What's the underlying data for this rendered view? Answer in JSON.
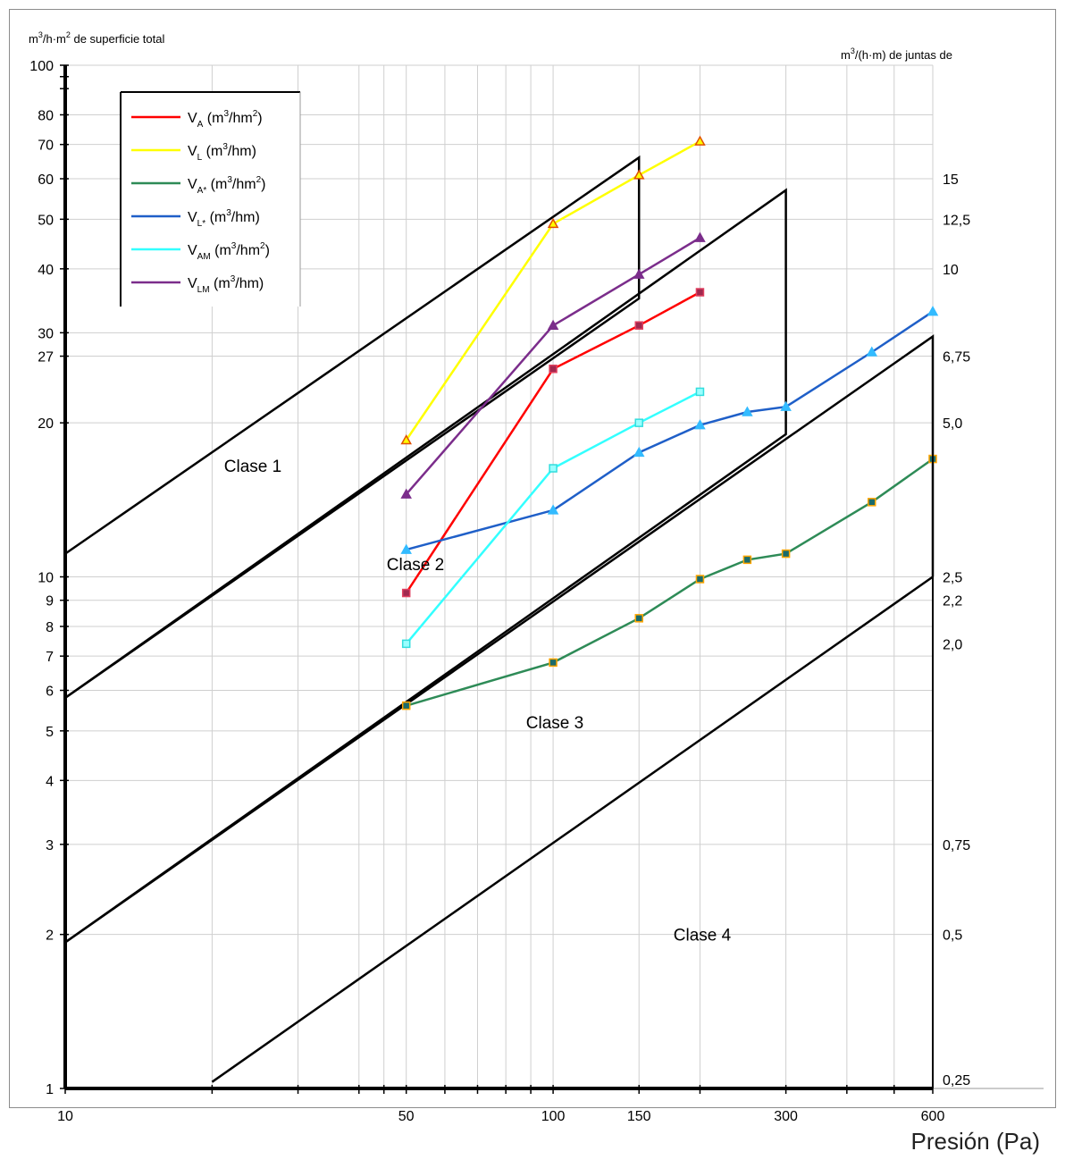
{
  "chart_data": {
    "type": "line",
    "x_scale": "log",
    "y_scale": "log",
    "xlim": [
      10,
      600
    ],
    "ylim": [
      1,
      100
    ],
    "grid": true,
    "legend_position": "top-left",
    "ylabel_left": {
      "base": "m",
      "sup1": "3",
      "mid": "/h·m",
      "sup2": "2",
      "tail": " de superficie total"
    },
    "ylabel_right": {
      "base": "m",
      "sup1": "3",
      "tail": "/(h·m) de juntas de"
    },
    "xlabel": "Presión (Pa)",
    "x_ticks": [
      "10",
      "50",
      "100",
      "150",
      "300",
      "600"
    ],
    "y_ticks_left": [
      "100",
      "80",
      "70",
      "60",
      "50",
      "40",
      "30",
      "27",
      "20",
      "10",
      "9",
      "8",
      "7",
      "6",
      "5",
      "4",
      "3",
      "2",
      "1"
    ],
    "y_ticks_right": [
      "15",
      "12,5",
      "10",
      "6,75",
      "5,0",
      "2,5",
      "2,2",
      "2,0",
      "0,75",
      "0,5",
      "0,25"
    ],
    "class_labels": [
      "Clase 1",
      "Clase 2",
      "Clase 3",
      "Clase 4"
    ],
    "class_boundaries": [
      {
        "points": [
          [
            10,
            11.1
          ],
          [
            150,
            66
          ],
          [
            150,
            35
          ],
          [
            10,
            5.8
          ]
        ]
      },
      {
        "points": [
          [
            10,
            5.8
          ],
          [
            300,
            57
          ],
          [
            300,
            19
          ],
          [
            10,
            1.93
          ]
        ]
      },
      {
        "points": [
          [
            10,
            1.93
          ],
          [
            600,
            29.5
          ],
          [
            600,
            10
          ]
        ]
      },
      {
        "points": [
          [
            20,
            1.03
          ],
          [
            600,
            10
          ]
        ]
      }
    ],
    "series": [
      {
        "name": "V_A (m³/hm²)",
        "label_parts": [
          "V",
          "A",
          " (m",
          "3",
          "/hm",
          "2",
          ")"
        ],
        "color": "#ff0000",
        "marker": "square",
        "marker_fill": "#a0284e",
        "marker_stroke": "#e04060",
        "x": [
          50,
          100,
          150,
          200
        ],
        "y": [
          9.3,
          25.5,
          31,
          36
        ]
      },
      {
        "name": "V_L (m³/hm)",
        "label_parts": [
          "V",
          "L",
          " (m",
          "3",
          "/hm)",
          "",
          ""
        ],
        "color": "#ffff00",
        "marker": "triangle",
        "marker_fill": "#ffff00",
        "marker_stroke": "#e05000",
        "x": [
          50,
          100,
          150,
          200
        ],
        "y": [
          18.5,
          49,
          61,
          71
        ]
      },
      {
        "name": "V_A* (m³/hm²)",
        "label_parts": [
          "V",
          "A*",
          " (m",
          "3",
          "/hm",
          "2",
          ")"
        ],
        "color": "#2e8b57",
        "marker": "square",
        "marker_fill": "#1a6b6b",
        "marker_stroke": "#ffa500",
        "x": [
          50,
          100,
          150,
          200,
          250,
          300,
          450,
          600
        ],
        "y": [
          5.6,
          6.8,
          8.3,
          9.9,
          10.8,
          11.1,
          14,
          17
        ]
      },
      {
        "name": "V_L* (m³/hm)",
        "label_parts": [
          "V",
          "L*",
          " (m",
          "3",
          "/hm)",
          "",
          ""
        ],
        "color": "#1f5fc8",
        "marker": "triangle",
        "marker_fill": "#33bbff",
        "marker_stroke": "#33bbff",
        "x": [
          50,
          100,
          150,
          200,
          250,
          300,
          450,
          600
        ],
        "y": [
          11.3,
          13.5,
          17.5,
          19.8,
          21,
          21.5,
          27.5,
          33
        ]
      },
      {
        "name": "V_AM (m³/hm²)",
        "label_parts": [
          "V",
          "AM",
          " (m",
          "3",
          "/hm",
          "2",
          ")"
        ],
        "color": "#33ffff",
        "marker": "square",
        "marker_fill": "#99ffff",
        "marker_stroke": "#33dddd",
        "x": [
          50,
          100,
          150,
          200
        ],
        "y": [
          7.4,
          16.3,
          20,
          23
        ]
      },
      {
        "name": "V_LM (m³/hm)",
        "label_parts": [
          "V",
          "LM",
          " (m",
          "3",
          "/hm)",
          "",
          ""
        ],
        "color": "#7b2d8b",
        "marker": "triangle",
        "marker_fill": "#7b2d8b",
        "marker_stroke": "#7b2d8b",
        "x": [
          50,
          100,
          150,
          200
        ],
        "y": [
          14.5,
          31,
          39,
          46
        ]
      }
    ]
  }
}
